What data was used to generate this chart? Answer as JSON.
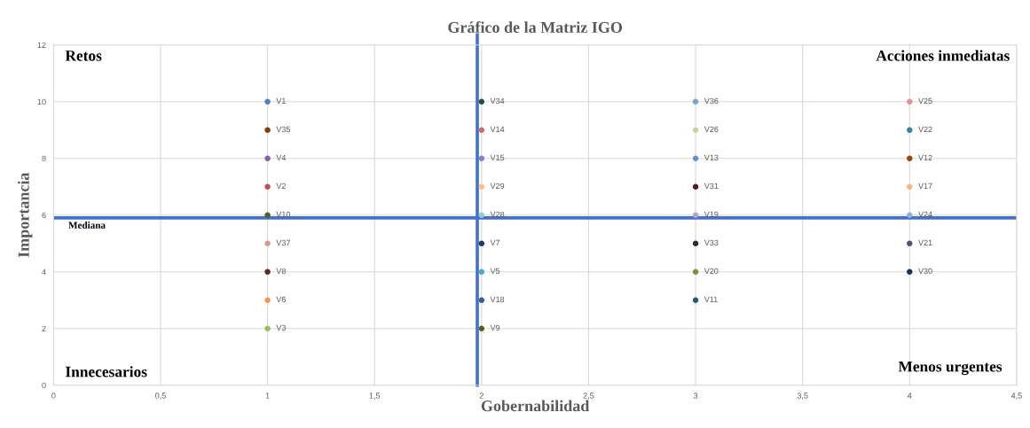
{
  "chart_data": {
    "type": "scatter",
    "title": "Gráfico de la Matriz IGO",
    "xlabel": "Gobernabilidad",
    "ylabel": "Importancia",
    "xlim": [
      0,
      4.5
    ],
    "ylim": [
      0,
      12
    ],
    "xticks": [
      0,
      {
        "value": 0.5,
        "label": "0,5"
      },
      1,
      {
        "value": 1.5,
        "label": "1,5"
      },
      2,
      {
        "value": 2.5,
        "label": "2,5"
      },
      3,
      {
        "value": 3.5,
        "label": "3,5"
      },
      4,
      {
        "value": 4.5,
        "label": "4,5"
      }
    ],
    "yticks": [
      0,
      2,
      4,
      6,
      8,
      10,
      12
    ],
    "grid": true,
    "marker": "circle",
    "ref_lines": [
      {
        "axis": "y",
        "value": 5.9,
        "label": "Mediana",
        "color": "#4472c4"
      },
      {
        "axis": "x",
        "value": 1.98,
        "label": null,
        "color": "#4472c4"
      }
    ],
    "annotations": [
      "Retos",
      "Acciones inmediatas",
      "Innecesarios",
      "Menos urgentes"
    ],
    "series": [
      {
        "name": "V1",
        "color": "#4f81bd",
        "x": [
          1
        ],
        "values": [
          10
        ]
      },
      {
        "name": "V35",
        "color": "#7f3f00",
        "x": [
          1
        ],
        "values": [
          9
        ]
      },
      {
        "name": "V4",
        "color": "#8064a2",
        "x": [
          1
        ],
        "values": [
          8
        ]
      },
      {
        "name": "V2",
        "color": "#c0504d",
        "x": [
          1
        ],
        "values": [
          7
        ]
      },
      {
        "name": "V10",
        "color": "#4f6228",
        "x": [
          1
        ],
        "values": [
          6
        ]
      },
      {
        "name": "V37",
        "color": "#d9959a",
        "x": [
          1
        ],
        "values": [
          5
        ]
      },
      {
        "name": "V8",
        "color": "#632523",
        "x": [
          1
        ],
        "values": [
          4
        ]
      },
      {
        "name": "V6",
        "color": "#f79646",
        "x": [
          1
        ],
        "values": [
          3
        ]
      },
      {
        "name": "V3",
        "color": "#9bbb59",
        "x": [
          1
        ],
        "values": [
          2
        ]
      },
      {
        "name": "V34",
        "color": "#1f4e4a",
        "x": [
          2
        ],
        "values": [
          10
        ]
      },
      {
        "name": "V14",
        "color": "#d06b6b",
        "x": [
          2
        ],
        "values": [
          9
        ]
      },
      {
        "name": "V15",
        "color": "#8e7cc3",
        "x": [
          2
        ],
        "values": [
          8
        ]
      },
      {
        "name": "V29",
        "color": "#fac090",
        "x": [
          2
        ],
        "values": [
          7
        ]
      },
      {
        "name": "V28",
        "color": "#93cddd",
        "x": [
          2
        ],
        "values": [
          6
        ]
      },
      {
        "name": "V7",
        "color": "#1f3864",
        "x": [
          2
        ],
        "values": [
          5
        ]
      },
      {
        "name": "V5",
        "color": "#4bacc6",
        "x": [
          2
        ],
        "values": [
          4
        ]
      },
      {
        "name": "V18",
        "color": "#366092",
        "x": [
          2
        ],
        "values": [
          3
        ]
      },
      {
        "name": "V9",
        "color": "#4f6228",
        "x": [
          2
        ],
        "values": [
          2
        ]
      },
      {
        "name": "V36",
        "color": "#7f9fd4",
        "x": [
          3
        ],
        "values": [
          10
        ]
      },
      {
        "name": "V26",
        "color": "#c3d69b",
        "x": [
          3
        ],
        "values": [
          9
        ]
      },
      {
        "name": "V13",
        "color": "#6a8fd0",
        "x": [
          3
        ],
        "values": [
          8
        ]
      },
      {
        "name": "V31",
        "color": "#5a1a1a",
        "x": [
          3
        ],
        "values": [
          7
        ]
      },
      {
        "name": "V19",
        "color": "#b2a2c7",
        "x": [
          3
        ],
        "values": [
          6
        ]
      },
      {
        "name": "V33",
        "color": "#2a2a40",
        "x": [
          3
        ],
        "values": [
          5
        ]
      },
      {
        "name": "V20",
        "color": "#77933c",
        "x": [
          3
        ],
        "values": [
          4
        ]
      },
      {
        "name": "V11",
        "color": "#215f6b",
        "x": [
          3
        ],
        "values": [
          3
        ]
      },
      {
        "name": "V25",
        "color": "#d99694",
        "x": [
          4
        ],
        "values": [
          10
        ]
      },
      {
        "name": "V22",
        "color": "#31859c",
        "x": [
          4
        ],
        "values": [
          9
        ]
      },
      {
        "name": "V12",
        "color": "#984807",
        "x": [
          4
        ],
        "values": [
          8
        ]
      },
      {
        "name": "V17",
        "color": "#fab57c",
        "x": [
          4
        ],
        "values": [
          7
        ]
      },
      {
        "name": "V24",
        "color": "#8db3e2",
        "x": [
          4
        ],
        "values": [
          6
        ]
      },
      {
        "name": "V21",
        "color": "#604a7b",
        "x": [
          4
        ],
        "values": [
          5
        ]
      },
      {
        "name": "V30",
        "color": "#17375e",
        "x": [
          4
        ],
        "values": [
          4
        ]
      }
    ]
  }
}
